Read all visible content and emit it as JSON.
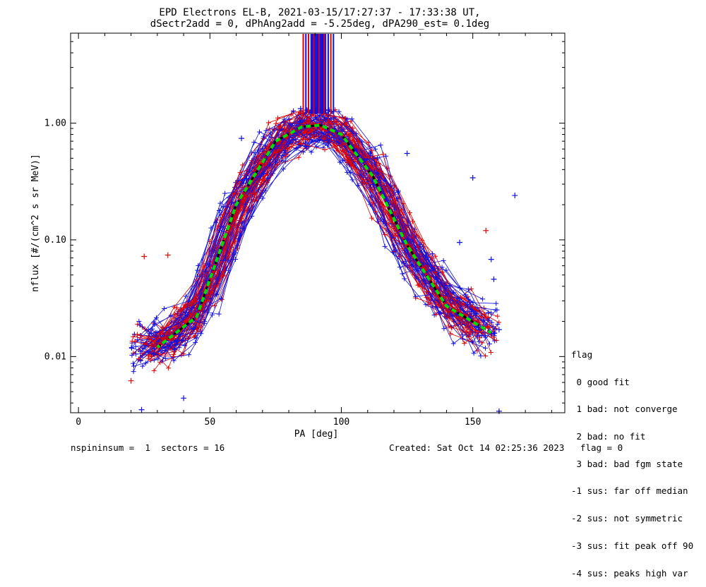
{
  "chart_data": {
    "type": "line",
    "title": "EPD Electrons EL-B, 2021-03-15/17:27:37 - 17:33:38 UT,",
    "subtitle": "dSectr2add = 0, dPhAng2add = -5.25deg, dPA290_est=   0.1deg",
    "xlabel": "PA [deg]",
    "ylabel": "nflux [#/(cm^2 s sr MeV)]",
    "xlim": [
      -3,
      185
    ],
    "ylim": [
      0.0033,
      5.9
    ],
    "yscale": "log",
    "x_ticks": [
      0,
      50,
      100,
      150
    ],
    "x_tick_labels": [
      "0",
      "50",
      "100",
      "150"
    ],
    "y_ticks": [
      0.01,
      0.1,
      1.0
    ],
    "y_tick_labels": [
      "0.01",
      "0.10",
      "1.00"
    ],
    "series_colors": {
      "sweep_a": "#e00000",
      "sweep_b": "#1010e0",
      "median_fit": "#00dd00",
      "median_ref": "#000000"
    },
    "median_fit": {
      "x": [
        30,
        45,
        60,
        75,
        85,
        92,
        100,
        112,
        125,
        140,
        157
      ],
      "y": [
        0.012,
        0.022,
        0.2,
        0.7,
        0.93,
        0.96,
        0.8,
        0.35,
        0.09,
        0.027,
        0.016
      ]
    },
    "vertical_marks": {
      "x": [
        85.5,
        86.5,
        87.5,
        88.5,
        89.0,
        89.5,
        90.0,
        90.5,
        91.0,
        91.5,
        92.0,
        92.5,
        93.0,
        93.5,
        94.0,
        95.0,
        96.0,
        97.0
      ],
      "colors": [
        "#e00000",
        "#1010e0",
        "#e00000",
        "#1010e0",
        "#1010e0",
        "#e00000",
        "#1010e0",
        "#1010e0",
        "#1010e0",
        "#e00000",
        "#1010e0",
        "#1010e0",
        "#1010e0",
        "#e00000",
        "#1010e0",
        "#1010e0",
        "#e00000",
        "#1010e0"
      ]
    },
    "outlier_points": [
      {
        "color": "blue",
        "x": 166,
        "y": 0.24
      },
      {
        "color": "blue",
        "x": 150,
        "y": 0.34
      },
      {
        "color": "blue",
        "x": 125,
        "y": 0.55
      },
      {
        "color": "blue",
        "x": 62,
        "y": 0.74
      },
      {
        "color": "blue",
        "x": 84.5,
        "y": 1.33
      },
      {
        "color": "red",
        "x": 155,
        "y": 0.12
      },
      {
        "color": "red",
        "x": 25,
        "y": 0.072
      },
      {
        "color": "red",
        "x": 34,
        "y": 0.074
      },
      {
        "color": "blue",
        "x": 24,
        "y": 0.0035
      },
      {
        "color": "blue",
        "x": 160,
        "y": 0.0034
      },
      {
        "color": "blue",
        "x": 40,
        "y": 0.0044
      },
      {
        "color": "red",
        "x": 20,
        "y": 0.0062
      },
      {
        "color": "blue",
        "x": 160,
        "y": 0.017
      },
      {
        "color": "blue",
        "x": 158,
        "y": 0.046
      },
      {
        "color": "blue",
        "x": 157,
        "y": 0.068
      },
      {
        "color": "blue",
        "x": 145,
        "y": 0.095
      }
    ]
  },
  "legend": {
    "title": "flag",
    "items": [
      " 0 good fit",
      " 1 bad: not converge",
      " 2 bad: no fit",
      " 3 bad: bad fgm state",
      "-1 sus: far off median",
      "-2 sus: not symmetric",
      "-3 sus: fit peak off 90",
      "-4 sus: peaks high var"
    ]
  },
  "footer": {
    "left": "nspininsum =  1  sectors = 16",
    "right": "Created: Sat Oct 14 02:25:36 2023   flag = 0"
  }
}
